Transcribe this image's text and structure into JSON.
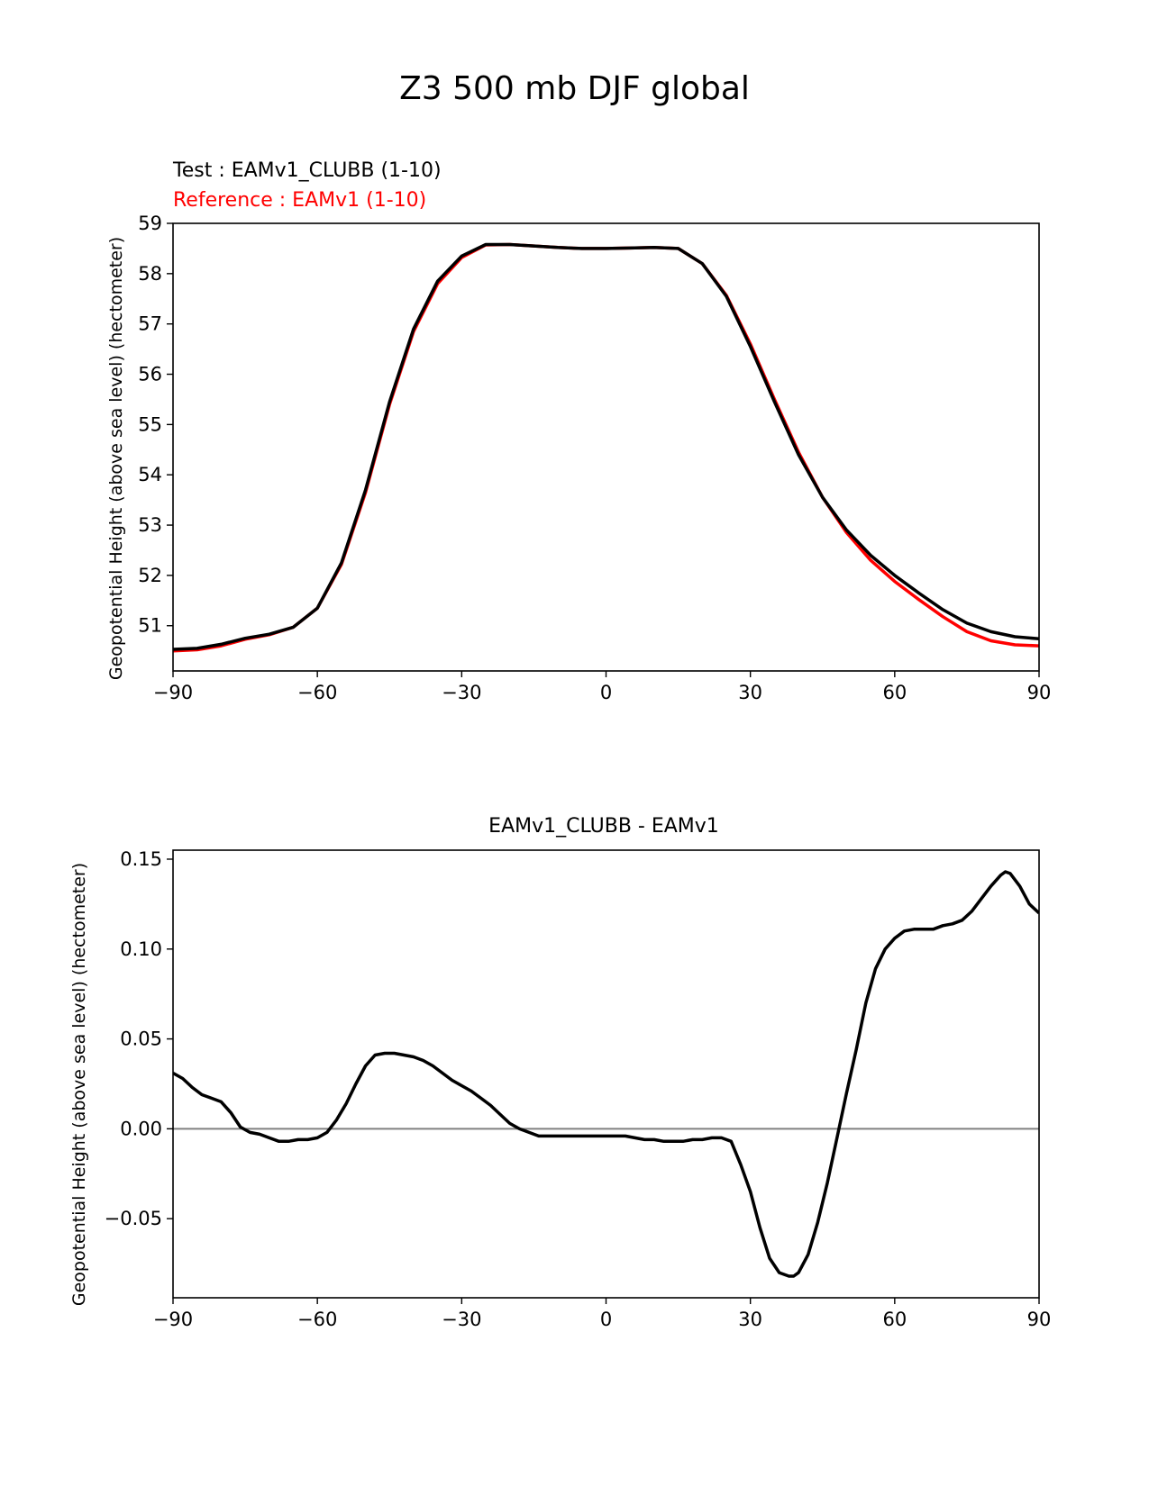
{
  "figure": {
    "title": "Z3 500 mb DJF global",
    "colors": {
      "test": "#000000",
      "reference": "#ff0000",
      "zero_line": "#808080",
      "axes": "#000000"
    }
  },
  "chart_data": [
    {
      "type": "line",
      "legend": {
        "test_label": "Test : EAMv1_CLUBB (1-10)",
        "reference_label": "Reference : EAMv1 (1-10)",
        "placement": "top-left, above axes"
      },
      "xlabel": "",
      "ylabel": "Geopotential Height (above sea level) (hectometer)",
      "xlim": [
        -90,
        90
      ],
      "ylim": [
        50.1,
        59
      ],
      "xticks": [
        -90,
        -60,
        -30,
        0,
        30,
        60,
        90
      ],
      "xtick_labels": [
        "−90",
        "−60",
        "−30",
        "0",
        "30",
        "60",
        "90"
      ],
      "yticks": [
        51,
        52,
        53,
        54,
        55,
        56,
        57,
        58,
        59
      ],
      "ytick_labels": [
        "51",
        "52",
        "53",
        "54",
        "55",
        "56",
        "57",
        "58",
        "59"
      ],
      "x": [
        -90,
        -85,
        -80,
        -75,
        -70,
        -65,
        -60,
        -55,
        -50,
        -45,
        -40,
        -35,
        -30,
        -25,
        -20,
        -15,
        -10,
        -5,
        0,
        5,
        10,
        15,
        20,
        25,
        30,
        35,
        40,
        45,
        50,
        55,
        60,
        65,
        70,
        75,
        80,
        85,
        90
      ],
      "series": [
        {
          "name": "Test : EAMv1_CLUBB (1-10)",
          "color": "#000000",
          "values": [
            50.53,
            50.55,
            50.63,
            50.75,
            50.83,
            50.97,
            51.35,
            52.25,
            53.7,
            55.45,
            56.9,
            57.85,
            58.35,
            58.58,
            58.58,
            58.55,
            58.52,
            58.5,
            58.5,
            58.51,
            58.52,
            58.5,
            58.2,
            57.55,
            56.55,
            55.45,
            54.4,
            53.55,
            52.9,
            52.4,
            52.0,
            51.65,
            51.32,
            51.05,
            50.88,
            50.78,
            50.74
          ]
        },
        {
          "name": "Reference : EAMv1 (1-10)",
          "color": "#ff0000",
          "values": [
            50.5,
            50.52,
            50.6,
            50.73,
            50.82,
            50.97,
            51.35,
            52.22,
            53.65,
            55.4,
            56.85,
            57.8,
            58.32,
            58.57,
            58.58,
            58.55,
            58.52,
            58.5,
            58.5,
            58.51,
            58.52,
            58.5,
            58.2,
            57.57,
            56.6,
            55.5,
            54.45,
            53.55,
            52.85,
            52.3,
            51.88,
            51.52,
            51.18,
            50.88,
            50.7,
            50.62,
            50.6
          ]
        }
      ]
    },
    {
      "type": "line",
      "title": "EAMv1_CLUBB - EAMv1",
      "xlabel": "",
      "ylabel": "Geopotential Height (above sea level) (hectometer)",
      "xlim": [
        -90,
        90
      ],
      "ylim": [
        -0.094,
        0.155
      ],
      "xticks": [
        -90,
        -60,
        -30,
        0,
        30,
        60,
        90
      ],
      "xtick_labels": [
        "−90",
        "−60",
        "−30",
        "0",
        "30",
        "60",
        "90"
      ],
      "yticks": [
        -0.05,
        0.0,
        0.05,
        0.1,
        0.15
      ],
      "ytick_labels": [
        "−0.05",
        "0.00",
        "0.05",
        "0.10",
        "0.15"
      ],
      "zero_line": 0,
      "x": [
        -90,
        -88,
        -86,
        -84,
        -82,
        -80,
        -78,
        -76,
        -74,
        -72,
        -70,
        -68,
        -66,
        -64,
        -62,
        -60,
        -58,
        -56,
        -54,
        -52,
        -50,
        -48,
        -46,
        -44,
        -42,
        -40,
        -38,
        -36,
        -34,
        -32,
        -30,
        -28,
        -26,
        -24,
        -22,
        -20,
        -18,
        -16,
        -14,
        -12,
        -10,
        -8,
        -6,
        -4,
        -2,
        0,
        2,
        4,
        6,
        8,
        10,
        12,
        14,
        16,
        18,
        20,
        22,
        24,
        26,
        28,
        30,
        32,
        34,
        36,
        38,
        39,
        40,
        42,
        44,
        46,
        48,
        50,
        52,
        54,
        56,
        58,
        60,
        62,
        64,
        66,
        68,
        70,
        72,
        74,
        76,
        78,
        80,
        82,
        83,
        84,
        86,
        88,
        90
      ],
      "series": [
        {
          "name": "EAMv1_CLUBB - EAMv1",
          "color": "#000000",
          "values": [
            0.031,
            0.028,
            0.023,
            0.019,
            0.017,
            0.015,
            0.009,
            0.001,
            -0.002,
            -0.003,
            -0.005,
            -0.007,
            -0.007,
            -0.006,
            -0.006,
            -0.005,
            -0.002,
            0.005,
            0.014,
            0.025,
            0.035,
            0.041,
            0.042,
            0.042,
            0.041,
            0.04,
            0.038,
            0.035,
            0.031,
            0.027,
            0.024,
            0.021,
            0.017,
            0.013,
            0.008,
            0.003,
            0.0,
            -0.002,
            -0.004,
            -0.004,
            -0.004,
            -0.004,
            -0.004,
            -0.004,
            -0.004,
            -0.004,
            -0.004,
            -0.004,
            -0.005,
            -0.006,
            -0.006,
            -0.007,
            -0.007,
            -0.007,
            -0.006,
            -0.006,
            -0.005,
            -0.005,
            -0.007,
            -0.02,
            -0.035,
            -0.055,
            -0.072,
            -0.08,
            -0.082,
            -0.082,
            -0.08,
            -0.07,
            -0.052,
            -0.03,
            -0.005,
            0.02,
            0.044,
            0.07,
            0.089,
            0.1,
            0.106,
            0.11,
            0.111,
            0.111,
            0.111,
            0.113,
            0.114,
            0.116,
            0.121,
            0.128,
            0.135,
            0.141,
            0.143,
            0.142,
            0.135,
            0.125,
            0.12
          ]
        }
      ]
    }
  ]
}
